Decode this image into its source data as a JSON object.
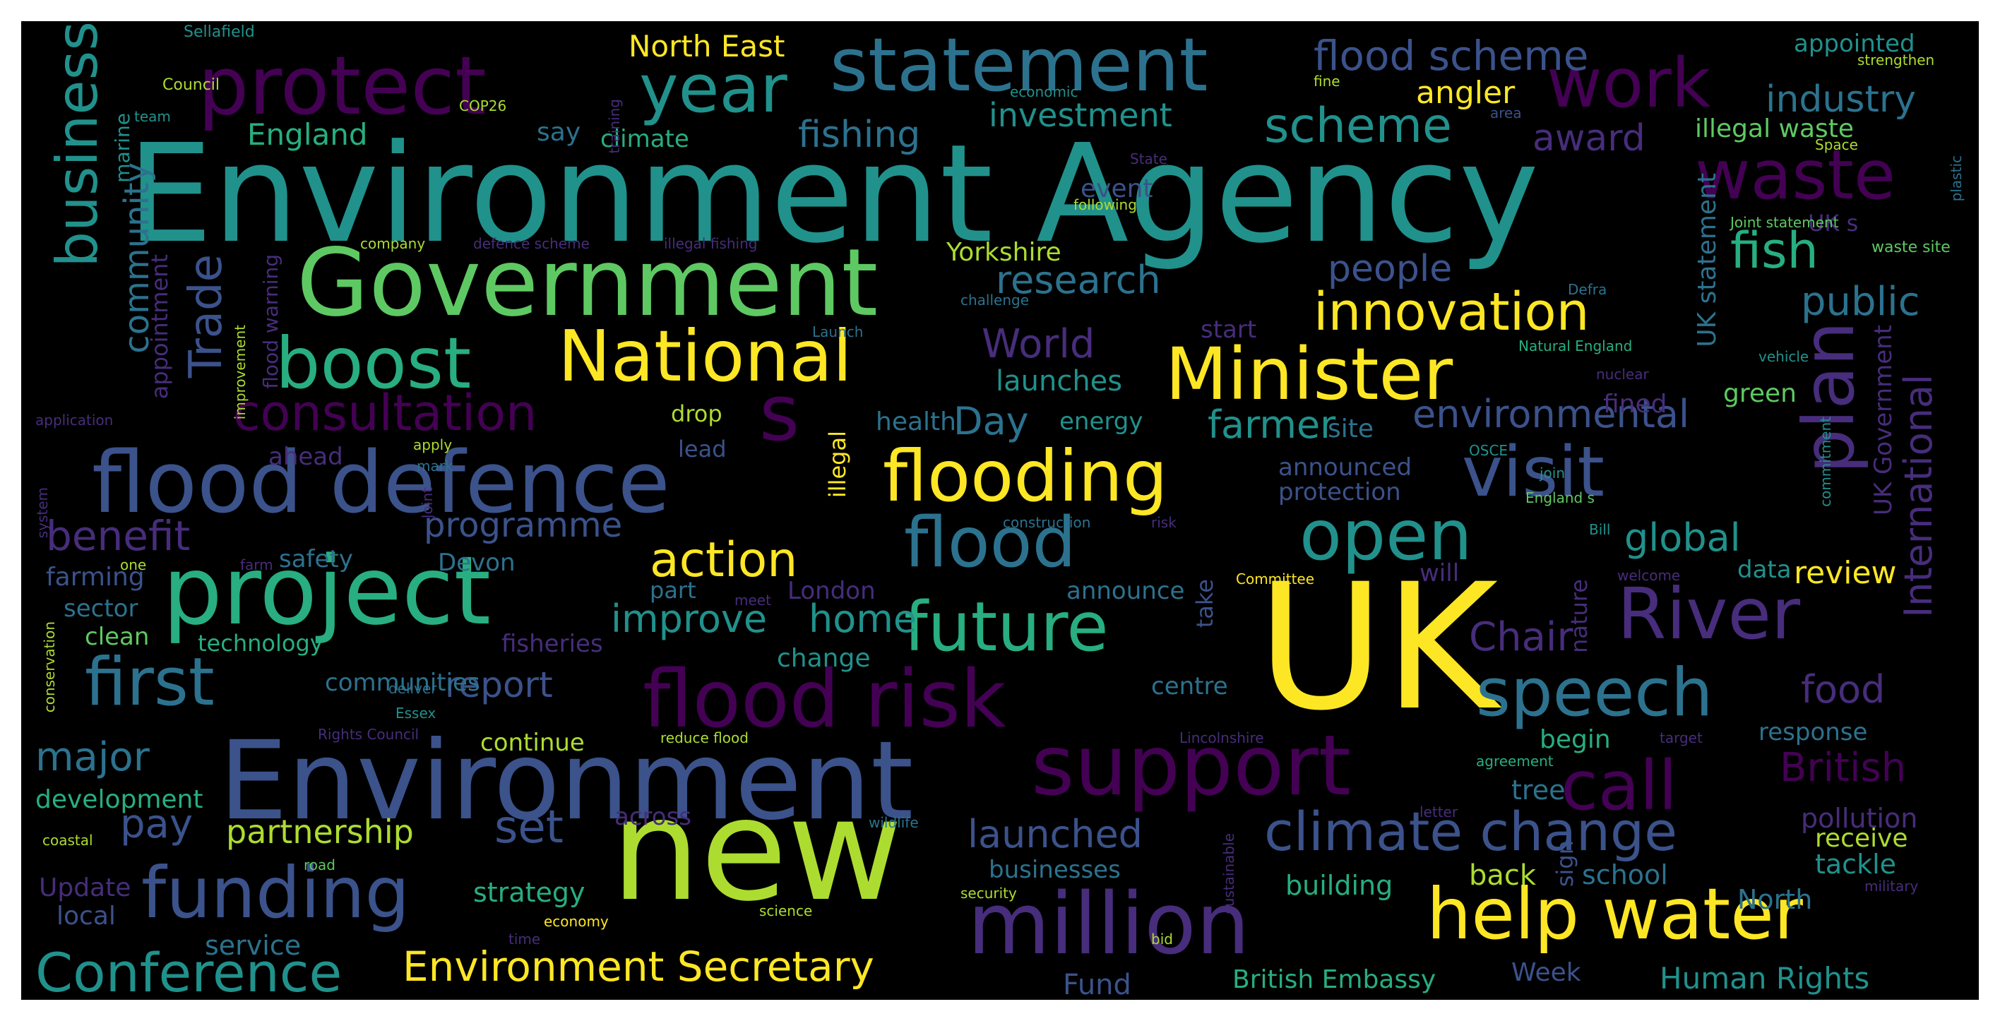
{
  "palette": {
    "purple": "#440154",
    "indigo": "#472d7b",
    "blue": "#3b528b",
    "steel": "#2c728e",
    "teal": "#21918c",
    "green": "#28ae80",
    "lime": "#5ec962",
    "yellowgreen": "#addc30",
    "yellow": "#fde725"
  },
  "words": [
    {
      "text": "Environment Agency",
      "color": "teal"
    },
    {
      "text": "UK",
      "color": "yellow"
    },
    {
      "text": "new",
      "color": "yellowgreen"
    },
    {
      "text": "Environment",
      "color": "blue"
    },
    {
      "text": "Government",
      "color": "lime"
    },
    {
      "text": "flood defence",
      "color": "blue"
    },
    {
      "text": "project",
      "color": "green"
    },
    {
      "text": "flood risk",
      "color": "purple"
    },
    {
      "text": "support",
      "color": "purple"
    },
    {
      "text": "million",
      "color": "indigo"
    },
    {
      "text": "protect",
      "color": "purple"
    },
    {
      "text": "statement",
      "color": "steel"
    },
    {
      "text": "Minister",
      "color": "yellow"
    },
    {
      "text": "help water",
      "color": "yellow"
    },
    {
      "text": "flooding",
      "color": "yellow"
    },
    {
      "text": "National",
      "color": "yellow"
    },
    {
      "text": "boost",
      "color": "green"
    },
    {
      "text": "funding",
      "color": "blue"
    },
    {
      "text": "future",
      "color": "green"
    },
    {
      "text": "River",
      "color": "indigo"
    },
    {
      "text": "speech",
      "color": "steel"
    },
    {
      "text": "climate change",
      "color": "blue"
    },
    {
      "text": "first",
      "color": "steel"
    },
    {
      "text": "business",
      "color": "teal"
    },
    {
      "text": "work",
      "color": "purple"
    },
    {
      "text": "waste",
      "color": "purple"
    },
    {
      "text": "plan",
      "color": "indigo"
    },
    {
      "text": "visit",
      "color": "blue"
    },
    {
      "text": "flood",
      "color": "steel"
    },
    {
      "text": "open",
      "color": "teal"
    },
    {
      "text": "year",
      "color": "teal"
    },
    {
      "text": "Conference",
      "color": "teal"
    },
    {
      "text": "call",
      "color": "purple"
    },
    {
      "text": "s",
      "color": "purple"
    },
    {
      "text": "innovation",
      "color": "yellow"
    },
    {
      "text": "consultation",
      "color": "purple"
    },
    {
      "text": "action",
      "color": "yellow"
    },
    {
      "text": "Environment Secretary",
      "color": "yellow"
    },
    {
      "text": "Trade",
      "color": "blue"
    },
    {
      "text": "scheme",
      "color": "teal"
    },
    {
      "text": "flood scheme",
      "color": "blue"
    },
    {
      "text": "fish",
      "color": "green"
    },
    {
      "text": "industry",
      "color": "steel"
    },
    {
      "text": "community",
      "color": "steel"
    },
    {
      "text": "fishing",
      "color": "steel"
    },
    {
      "text": "research",
      "color": "steel"
    },
    {
      "text": "investment",
      "color": "teal"
    },
    {
      "text": "improve",
      "color": "teal"
    },
    {
      "text": "home",
      "color": "teal"
    },
    {
      "text": "report",
      "color": "blue"
    },
    {
      "text": "benefit",
      "color": "indigo"
    },
    {
      "text": "major",
      "color": "steel"
    },
    {
      "text": "pay",
      "color": "blue"
    },
    {
      "text": "set",
      "color": "blue"
    },
    {
      "text": "partnership",
      "color": "yellowgreen"
    },
    {
      "text": "launched",
      "color": "blue"
    },
    {
      "text": "environmental",
      "color": "blue"
    },
    {
      "text": "global",
      "color": "teal"
    },
    {
      "text": "Chair",
      "color": "indigo"
    },
    {
      "text": "food",
      "color": "indigo"
    },
    {
      "text": "British",
      "color": "purple"
    },
    {
      "text": "International",
      "color": "indigo"
    },
    {
      "text": "award",
      "color": "indigo"
    },
    {
      "text": "public",
      "color": "steel"
    },
    {
      "text": "people",
      "color": "blue"
    },
    {
      "text": "farmer",
      "color": "teal"
    },
    {
      "text": "World",
      "color": "indigo"
    },
    {
      "text": "Day",
      "color": "steel"
    },
    {
      "text": "programme",
      "color": "blue"
    },
    {
      "text": "North East",
      "color": "yellow"
    },
    {
      "text": "England",
      "color": "green"
    },
    {
      "text": "angler",
      "color": "yellow"
    },
    {
      "text": "illegal waste",
      "color": "lime"
    },
    {
      "text": "appointed",
      "color": "teal"
    },
    {
      "text": "UK statement",
      "color": "steel"
    },
    {
      "text": "UK Government",
      "color": "indigo"
    },
    {
      "text": "launches",
      "color": "teal"
    },
    {
      "text": "Yorkshire",
      "color": "yellowgreen"
    },
    {
      "text": "review",
      "color": "yellow"
    },
    {
      "text": "pollution",
      "color": "indigo"
    },
    {
      "text": "Human Rights",
      "color": "teal"
    },
    {
      "text": "British Embassy",
      "color": "green"
    },
    {
      "text": "Fund",
      "color": "blue"
    },
    {
      "text": "development",
      "color": "green"
    },
    {
      "text": "service",
      "color": "steel"
    },
    {
      "text": "Update",
      "color": "indigo"
    },
    {
      "text": "local",
      "color": "blue"
    },
    {
      "text": "strategy",
      "color": "green"
    },
    {
      "text": "businesses",
      "color": "steel"
    },
    {
      "text": "building",
      "color": "green"
    },
    {
      "text": "back",
      "color": "yellowgreen"
    },
    {
      "text": "school",
      "color": "steel"
    },
    {
      "text": "tackle",
      "color": "teal"
    },
    {
      "text": "receive",
      "color": "yellowgreen"
    },
    {
      "text": "Week",
      "color": "blue"
    },
    {
      "text": "North",
      "color": "steel"
    },
    {
      "text": "tree",
      "color": "steel"
    },
    {
      "text": "begin",
      "color": "green"
    },
    {
      "text": "response",
      "color": "steel"
    },
    {
      "text": "continue",
      "color": "yellowgreen"
    },
    {
      "text": "communities",
      "color": "steel"
    },
    {
      "text": "fisheries",
      "color": "indigo"
    },
    {
      "text": "technology",
      "color": "green"
    },
    {
      "text": "change",
      "color": "teal"
    },
    {
      "text": "centre",
      "color": "steel"
    },
    {
      "text": "clean",
      "color": "lime"
    },
    {
      "text": "sector",
      "color": "steel"
    },
    {
      "text": "farming",
      "color": "blue"
    },
    {
      "text": "safety",
      "color": "steel"
    },
    {
      "text": "Devon",
      "color": "steel"
    },
    {
      "text": "announce",
      "color": "steel"
    },
    {
      "text": "London",
      "color": "indigo"
    },
    {
      "text": "part",
      "color": "steel"
    },
    {
      "text": "health",
      "color": "steel"
    },
    {
      "text": "energy",
      "color": "teal"
    },
    {
      "text": "lead",
      "color": "blue"
    },
    {
      "text": "drop",
      "color": "yellowgreen"
    },
    {
      "text": "ahead",
      "color": "indigo"
    },
    {
      "text": "start",
      "color": "indigo"
    },
    {
      "text": "site",
      "color": "steel"
    },
    {
      "text": "announced",
      "color": "blue"
    },
    {
      "text": "protection",
      "color": "blue"
    },
    {
      "text": "green",
      "color": "lime"
    },
    {
      "text": "fined",
      "color": "indigo"
    },
    {
      "text": "data",
      "color": "teal"
    },
    {
      "text": "will",
      "color": "indigo"
    },
    {
      "text": "say",
      "color": "steel"
    },
    {
      "text": "climate",
      "color": "green"
    },
    {
      "text": "event",
      "color": "blue"
    },
    {
      "text": "across",
      "color": "indigo"
    },
    {
      "text": "illegal",
      "color": "yellow"
    },
    {
      "text": "appointment",
      "color": "indigo"
    },
    {
      "text": "flood warning",
      "color": "indigo"
    },
    {
      "text": "marine",
      "color": "teal"
    },
    {
      "text": "UK s",
      "color": "indigo"
    },
    {
      "text": "sign",
      "color": "blue"
    },
    {
      "text": "take",
      "color": "blue"
    },
    {
      "text": "nature",
      "color": "indigo"
    },
    {
      "text": "Sellafield",
      "color": "teal"
    },
    {
      "text": "Council",
      "color": "yellowgreen"
    },
    {
      "text": "team",
      "color": "teal"
    },
    {
      "text": "COP26",
      "color": "yellowgreen"
    },
    {
      "text": "training",
      "color": "indigo"
    },
    {
      "text": "economic",
      "color": "teal"
    },
    {
      "text": "fine",
      "color": "yellowgreen"
    },
    {
      "text": "area",
      "color": "blue"
    },
    {
      "text": "strengthen",
      "color": "yellowgreen"
    },
    {
      "text": "State",
      "color": "indigo"
    },
    {
      "text": "following",
      "color": "yellowgreen"
    },
    {
      "text": "Space",
      "color": "yellowgreen"
    },
    {
      "text": "plastic",
      "color": "steel"
    },
    {
      "text": "Joint statement",
      "color": "lime"
    },
    {
      "text": "waste site",
      "color": "lime"
    },
    {
      "text": "company",
      "color": "yellowgreen"
    },
    {
      "text": "defence scheme",
      "color": "indigo"
    },
    {
      "text": "illegal fishing",
      "color": "indigo"
    },
    {
      "text": "challenge",
      "color": "steel"
    },
    {
      "text": "Defra",
      "color": "steel"
    },
    {
      "text": "Launch",
      "color": "steel"
    },
    {
      "text": "improvement",
      "color": "yellowgreen"
    },
    {
      "text": "Natural England",
      "color": "green"
    },
    {
      "text": "nuclear",
      "color": "indigo"
    },
    {
      "text": "vehicle",
      "color": "teal"
    },
    {
      "text": "commitment",
      "color": "teal"
    },
    {
      "text": "application",
      "color": "indigo"
    },
    {
      "text": "apply",
      "color": "yellowgreen"
    },
    {
      "text": "mark",
      "color": "steel"
    },
    {
      "text": "system",
      "color": "indigo"
    },
    {
      "text": "Joint",
      "color": "indigo"
    },
    {
      "text": "construction",
      "color": "steel"
    },
    {
      "text": "risk",
      "color": "indigo"
    },
    {
      "text": "OSCE",
      "color": "teal"
    },
    {
      "text": "join",
      "color": "teal"
    },
    {
      "text": "England s",
      "color": "lime"
    },
    {
      "text": "Bill",
      "color": "teal"
    },
    {
      "text": "one",
      "color": "yellowgreen"
    },
    {
      "text": "farm",
      "color": "indigo"
    },
    {
      "text": "Committee",
      "color": "yellow"
    },
    {
      "text": "meet",
      "color": "indigo"
    },
    {
      "text": "welcome",
      "color": "indigo"
    },
    {
      "text": "conservation",
      "color": "yellowgreen"
    },
    {
      "text": "deliver",
      "color": "steel"
    },
    {
      "text": "Essex",
      "color": "teal"
    },
    {
      "text": "Rights Council",
      "color": "indigo"
    },
    {
      "text": "reduce flood",
      "color": "yellowgreen"
    },
    {
      "text": "Lincolnshire",
      "color": "indigo"
    },
    {
      "text": "target",
      "color": "indigo"
    },
    {
      "text": "agreement",
      "color": "green"
    },
    {
      "text": "letter",
      "color": "indigo"
    },
    {
      "text": "coastal",
      "color": "yellowgreen"
    },
    {
      "text": "wildlife",
      "color": "steel"
    },
    {
      "text": "road",
      "color": "lime"
    },
    {
      "text": "sustainable",
      "color": "indigo"
    },
    {
      "text": "security",
      "color": "yellowgreen"
    },
    {
      "text": "military",
      "color": "indigo"
    },
    {
      "text": "science",
      "color": "yellowgreen"
    },
    {
      "text": "economy",
      "color": "yellow"
    },
    {
      "text": "time",
      "color": "indigo"
    },
    {
      "text": "bid",
      "color": "yellowgreen"
    }
  ]
}
